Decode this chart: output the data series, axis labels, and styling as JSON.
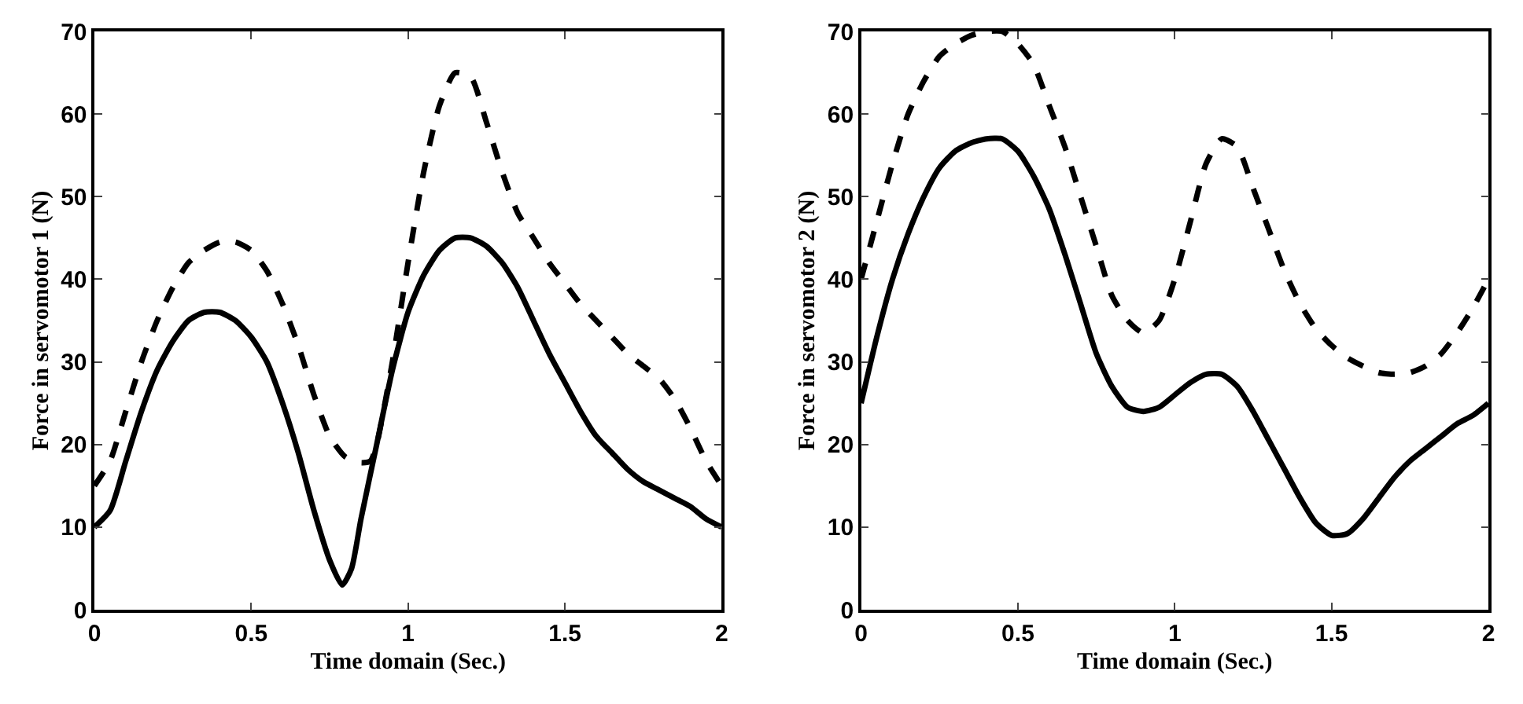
{
  "chart_data": [
    {
      "type": "line",
      "xlabel": "Time domain (Sec.)",
      "ylabel": "Force in servomotor 1 (N)",
      "xlim": [
        0,
        2
      ],
      "ylim": [
        0,
        70
      ],
      "xticks": [
        0,
        0.5,
        1,
        1.5,
        2
      ],
      "yticks": [
        0,
        10,
        20,
        30,
        40,
        50,
        60,
        70
      ],
      "series": [
        {
          "color": "#000000",
          "line_style": "solid",
          "x": [
            0,
            0.05,
            0.1,
            0.15,
            0.2,
            0.25,
            0.3,
            0.35,
            0.4,
            0.45,
            0.5,
            0.55,
            0.6,
            0.65,
            0.7,
            0.75,
            0.79,
            0.82,
            0.85,
            0.9,
            0.95,
            1.0,
            1.05,
            1.1,
            1.15,
            1.2,
            1.25,
            1.3,
            1.35,
            1.4,
            1.45,
            1.5,
            1.55,
            1.6,
            1.65,
            1.7,
            1.75,
            1.8,
            1.85,
            1.9,
            1.95,
            2.0
          ],
          "values": [
            10,
            12,
            18,
            24,
            29,
            32.5,
            35,
            36,
            36,
            35,
            33,
            30,
            25,
            19,
            12,
            6,
            3,
            5,
            11,
            20,
            29,
            36,
            40.5,
            43.5,
            45,
            45,
            44,
            42,
            39,
            35,
            31,
            27.5,
            24,
            21,
            19,
            17,
            15.5,
            14.5,
            13.5,
            12.5,
            11,
            10
          ]
        },
        {
          "color": "#000000",
          "line_style": "dashed",
          "x": [
            0,
            0.05,
            0.1,
            0.15,
            0.2,
            0.25,
            0.3,
            0.35,
            0.4,
            0.45,
            0.5,
            0.55,
            0.6,
            0.65,
            0.7,
            0.75,
            0.8,
            0.85,
            0.88,
            0.9,
            0.95,
            1.0,
            1.05,
            1.1,
            1.15,
            1.2,
            1.25,
            1.3,
            1.35,
            1.4,
            1.45,
            1.5,
            1.55,
            1.6,
            1.65,
            1.7,
            1.75,
            1.8,
            1.85,
            1.9,
            1.95,
            2.0
          ],
          "values": [
            15,
            18,
            24,
            30,
            35,
            39,
            42,
            43.5,
            44.5,
            44.5,
            43.5,
            41,
            37,
            32,
            26,
            21,
            18.5,
            17.8,
            18,
            20,
            30,
            42,
            53,
            61,
            65,
            64.5,
            59,
            53,
            48,
            45,
            42,
            39.5,
            37,
            35,
            33,
            31,
            29.5,
            28,
            25.5,
            22,
            18,
            15
          ]
        }
      ]
    },
    {
      "type": "line",
      "xlabel": "Time domain (Sec.)",
      "ylabel": "Force in servomotor 2 (N)",
      "xlim": [
        0,
        2
      ],
      "ylim": [
        0,
        70
      ],
      "xticks": [
        0,
        0.5,
        1,
        1.5,
        2
      ],
      "yticks": [
        0,
        10,
        20,
        30,
        40,
        50,
        60,
        70
      ],
      "series": [
        {
          "color": "#000000",
          "line_style": "solid",
          "x": [
            0,
            0.05,
            0.1,
            0.15,
            0.2,
            0.25,
            0.3,
            0.35,
            0.4,
            0.45,
            0.5,
            0.55,
            0.6,
            0.65,
            0.7,
            0.75,
            0.8,
            0.85,
            0.9,
            0.95,
            1.0,
            1.05,
            1.1,
            1.15,
            1.2,
            1.25,
            1.3,
            1.35,
            1.4,
            1.45,
            1.5,
            1.55,
            1.6,
            1.65,
            1.7,
            1.75,
            1.8,
            1.85,
            1.9,
            1.95,
            2.0
          ],
          "values": [
            25,
            33,
            40,
            45.5,
            50,
            53.5,
            55.5,
            56.5,
            57,
            57,
            55.5,
            52.5,
            48.5,
            43,
            37,
            31,
            27,
            24.5,
            24,
            24.5,
            26,
            27.5,
            28.5,
            28.5,
            27,
            24,
            20.5,
            17,
            13.5,
            10.5,
            9,
            9.2,
            11,
            13.5,
            16,
            18,
            19.5,
            21,
            22.5,
            23.5,
            25
          ]
        },
        {
          "color": "#000000",
          "line_style": "dashed",
          "x": [
            0,
            0.05,
            0.1,
            0.15,
            0.2,
            0.25,
            0.3,
            0.35,
            0.4,
            0.45,
            0.5,
            0.55,
            0.6,
            0.65,
            0.7,
            0.75,
            0.8,
            0.85,
            0.9,
            0.95,
            1.0,
            1.05,
            1.1,
            1.15,
            1.2,
            1.25,
            1.3,
            1.35,
            1.4,
            1.45,
            1.5,
            1.55,
            1.6,
            1.65,
            1.7,
            1.75,
            1.8,
            1.85,
            1.9,
            1.95,
            2.0
          ],
          "values": [
            40,
            47,
            54,
            60,
            64,
            67,
            68.5,
            69.5,
            70,
            70,
            68.5,
            66,
            61,
            56,
            50,
            44,
            38,
            35,
            33.5,
            35,
            40,
            47,
            54,
            57,
            56,
            51,
            46,
            41,
            37,
            34,
            32,
            30.5,
            29.5,
            28.7,
            28.5,
            28.7,
            29.5,
            31,
            33.5,
            36.5,
            40
          ]
        }
      ]
    }
  ]
}
